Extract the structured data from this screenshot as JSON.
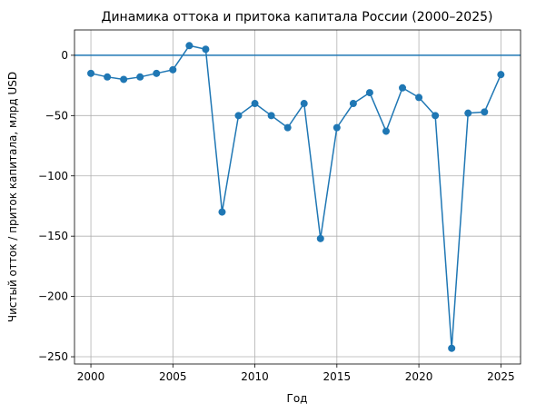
{
  "chart_data": {
    "type": "line",
    "title": "Динамика оттока и притока капитала России (2000–2025)",
    "xlabel": "Год",
    "ylabel": "Чистый отток / приток капитала, млрд USD",
    "xlim": [
      1999,
      2026.2
    ],
    "ylim": [
      -256,
      21
    ],
    "x_ticks": [
      2000,
      2005,
      2010,
      2015,
      2020,
      2025
    ],
    "y_ticks": [
      0,
      -50,
      -100,
      -150,
      -200,
      -250
    ],
    "y_tick_labels": [
      "0",
      "−50",
      "−100",
      "−150",
      "−200",
      "−250"
    ],
    "grid": true,
    "reference_line": 0,
    "colors": {
      "series": "#1f77b4",
      "grid": "#b0b0b0"
    },
    "series": [
      {
        "x": [
          2000,
          2001,
          2002,
          2003,
          2004,
          2005,
          2006,
          2007,
          2008,
          2009,
          2010,
          2011,
          2012,
          2013,
          2014,
          2015,
          2016,
          2017,
          2018,
          2019,
          2020,
          2021,
          2022,
          2023,
          2024,
          2025
        ],
        "values": [
          -15,
          -18,
          -20,
          -18,
          -15,
          -12,
          8,
          5,
          -130,
          -50,
          -40,
          -50,
          -60,
          -40,
          -152,
          -60,
          -40,
          -31,
          -63,
          -27,
          -35,
          -50,
          -243,
          -48,
          -47,
          -16
        ]
      }
    ]
  }
}
